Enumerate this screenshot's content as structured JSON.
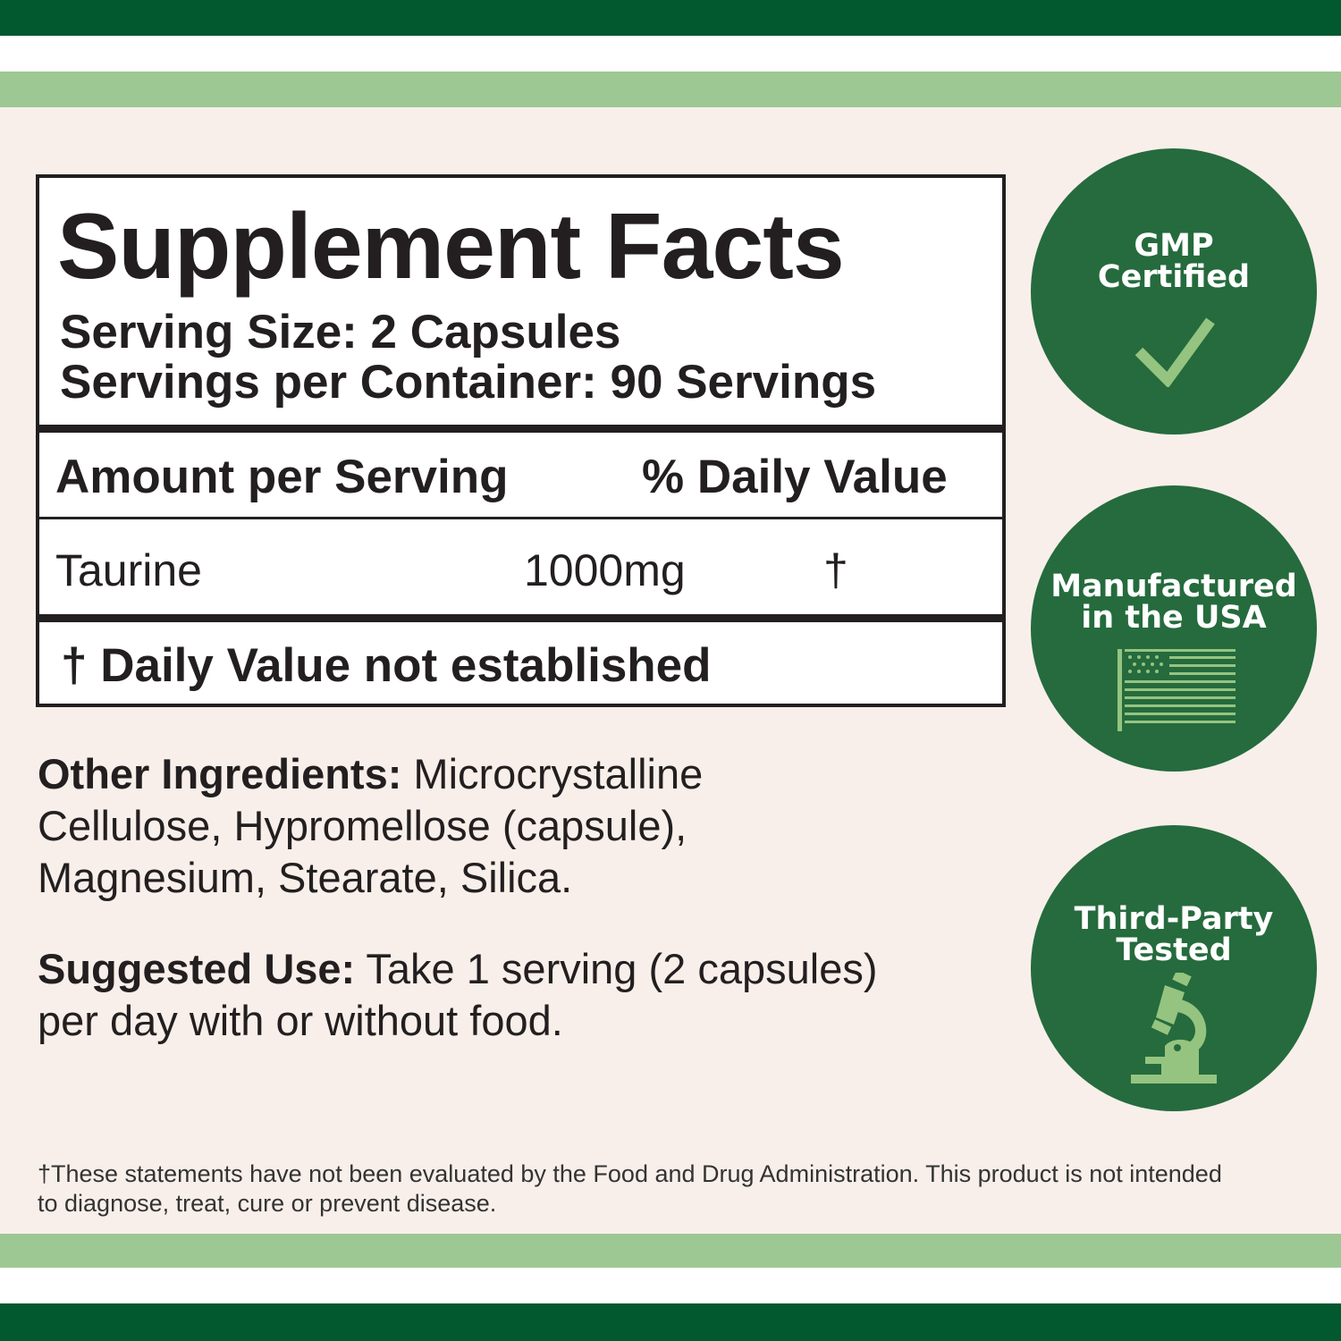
{
  "colors": {
    "dark_green": "#02582f",
    "light_green": "#9dc893",
    "badge_green": "#256b3d",
    "icon_green": "#95c480",
    "background": "#f8efea"
  },
  "facts": {
    "title": "Supplement Facts",
    "serving_size": "Serving Size: 2 Capsules",
    "servings_per_container": "Servings per Container: 90 Servings",
    "amount_header": "Amount per Serving",
    "dv_header": "% Daily Value",
    "rows": [
      {
        "name": "Taurine",
        "amount": "1000mg",
        "dv": "†"
      }
    ],
    "footnote": "† Daily Value not established"
  },
  "other_ingredients": {
    "label": "Other Ingredients:",
    "text": " Microcrystalline Cellulose, Hypromellose (capsule), Magnesium, Stearate, Silica."
  },
  "suggested_use": {
    "label": "Suggested Use:",
    "text": " Take 1 serving (2 capsules) per day with or without food."
  },
  "disclaimer": "†These statements have not been evaluated by the Food and Drug Administration. This product is not intended to diagnose, treat, cure or prevent disease.",
  "badges": [
    {
      "line1": "GMP",
      "line2": "Certified",
      "icon": "checkmark-icon"
    },
    {
      "line1": "Manufactured",
      "line2": "in the USA",
      "icon": "us-flag-icon"
    },
    {
      "line1": "Third-Party",
      "line2": "Tested",
      "icon": "microscope-icon"
    }
  ]
}
